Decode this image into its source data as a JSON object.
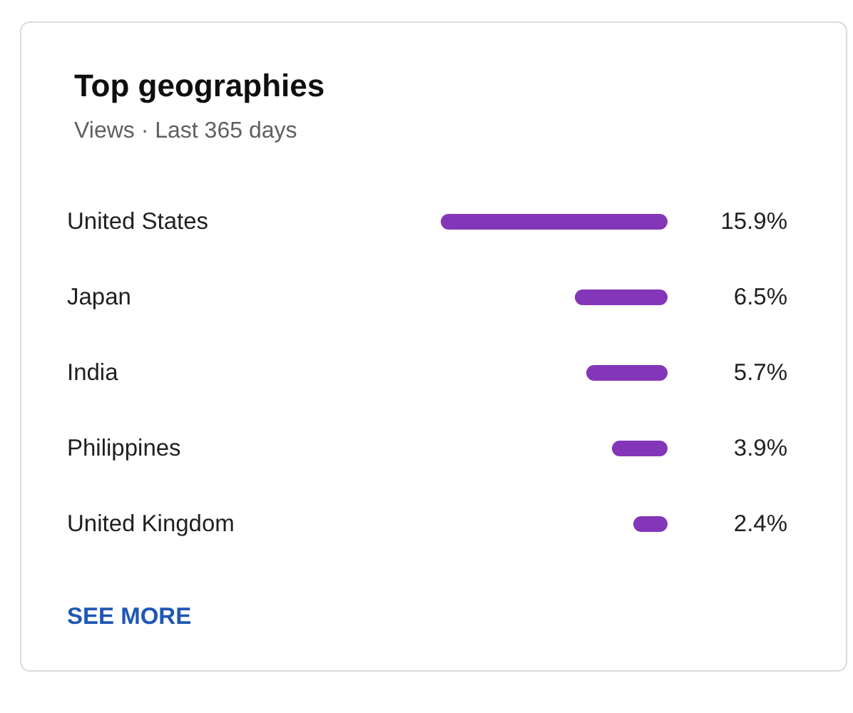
{
  "chart_data": {
    "type": "bar",
    "orientation": "horizontal",
    "title": "Top geographies",
    "subtitle": "Views · Last 365 days",
    "categories": [
      "United States",
      "Japan",
      "India",
      "Philippines",
      "United Kingdom"
    ],
    "values": [
      15.9,
      6.5,
      5.7,
      3.9,
      2.4
    ],
    "value_labels": [
      "15.9%",
      "6.5%",
      "5.7%",
      "3.9%",
      "2.4%"
    ],
    "color": "#8436b8",
    "xlim": [
      16,
      0
    ],
    "tick_labels": "y",
    "annotations": [
      "SEE MORE"
    ]
  }
}
